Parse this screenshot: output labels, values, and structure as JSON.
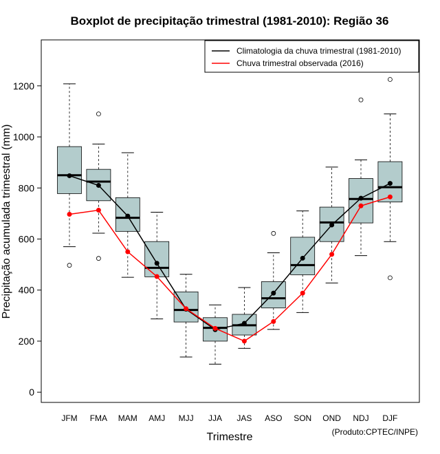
{
  "chart_data": {
    "type": "boxplot",
    "title": "Boxplot de precipitação trimestral (1981-2010): Região 36",
    "xlabel": "Trimestre",
    "ylabel": "Precipitação acumulada trimestral (mm)",
    "credit": "(Produto:CPTEC/INPE)",
    "ylim": [
      -40,
      1380
    ],
    "yticks": [
      0,
      200,
      400,
      600,
      800,
      1000,
      1200
    ],
    "categories": [
      "JFM",
      "FMA",
      "MAM",
      "AMJ",
      "MJJ",
      "JJA",
      "JAS",
      "ASO",
      "SON",
      "OND",
      "NDJ",
      "DJF"
    ],
    "box_color": "#b3cccc",
    "boxes": [
      {
        "whisker_low": 570,
        "q1": 778,
        "median": 850,
        "q3": 962,
        "whisker_high": 1208,
        "outliers": [
          497
        ]
      },
      {
        "whisker_low": 623,
        "q1": 750,
        "median": 825,
        "q3": 873,
        "whisker_high": 972,
        "outliers": [
          1090,
          524
        ]
      },
      {
        "whisker_low": 450,
        "q1": 630,
        "median": 683,
        "q3": 762,
        "whisker_high": 938,
        "outliers": []
      },
      {
        "whisker_low": 287,
        "q1": 452,
        "median": 487,
        "q3": 590,
        "whisker_high": 705,
        "outliers": []
      },
      {
        "whisker_low": 138,
        "q1": 275,
        "median": 322,
        "q3": 393,
        "whisker_high": 462,
        "outliers": []
      },
      {
        "whisker_low": 110,
        "q1": 200,
        "median": 252,
        "q3": 292,
        "whisker_high": 342,
        "outliers": []
      },
      {
        "whisker_low": 172,
        "q1": 224,
        "median": 262,
        "q3": 305,
        "whisker_high": 410,
        "outliers": []
      },
      {
        "whisker_low": 246,
        "q1": 330,
        "median": 368,
        "q3": 433,
        "whisker_high": 546,
        "outliers": [
          622
        ]
      },
      {
        "whisker_low": 312,
        "q1": 460,
        "median": 498,
        "q3": 607,
        "whisker_high": 710,
        "outliers": []
      },
      {
        "whisker_low": 428,
        "q1": 590,
        "median": 665,
        "q3": 725,
        "whisker_high": 882,
        "outliers": []
      },
      {
        "whisker_low": 535,
        "q1": 663,
        "median": 757,
        "q3": 837,
        "whisker_high": 910,
        "outliers": [
          1145
        ]
      },
      {
        "whisker_low": 590,
        "q1": 745,
        "median": 803,
        "q3": 903,
        "whisker_high": 1090,
        "outliers": [
          1225,
          448
        ]
      }
    ],
    "series": [
      {
        "name": "Climatologia da chuva trimestral (1981-2010)",
        "color": "#000000",
        "values": [
          848,
          810,
          690,
          505,
          325,
          245,
          270,
          388,
          525,
          655,
          760,
          818
        ]
      },
      {
        "name": "Chuva trimestral observada (2016)",
        "color": "#ff0000",
        "values": [
          697,
          713,
          550,
          453,
          327,
          250,
          200,
          277,
          388,
          540,
          730,
          765
        ]
      }
    ],
    "legend_position": "top-right"
  }
}
